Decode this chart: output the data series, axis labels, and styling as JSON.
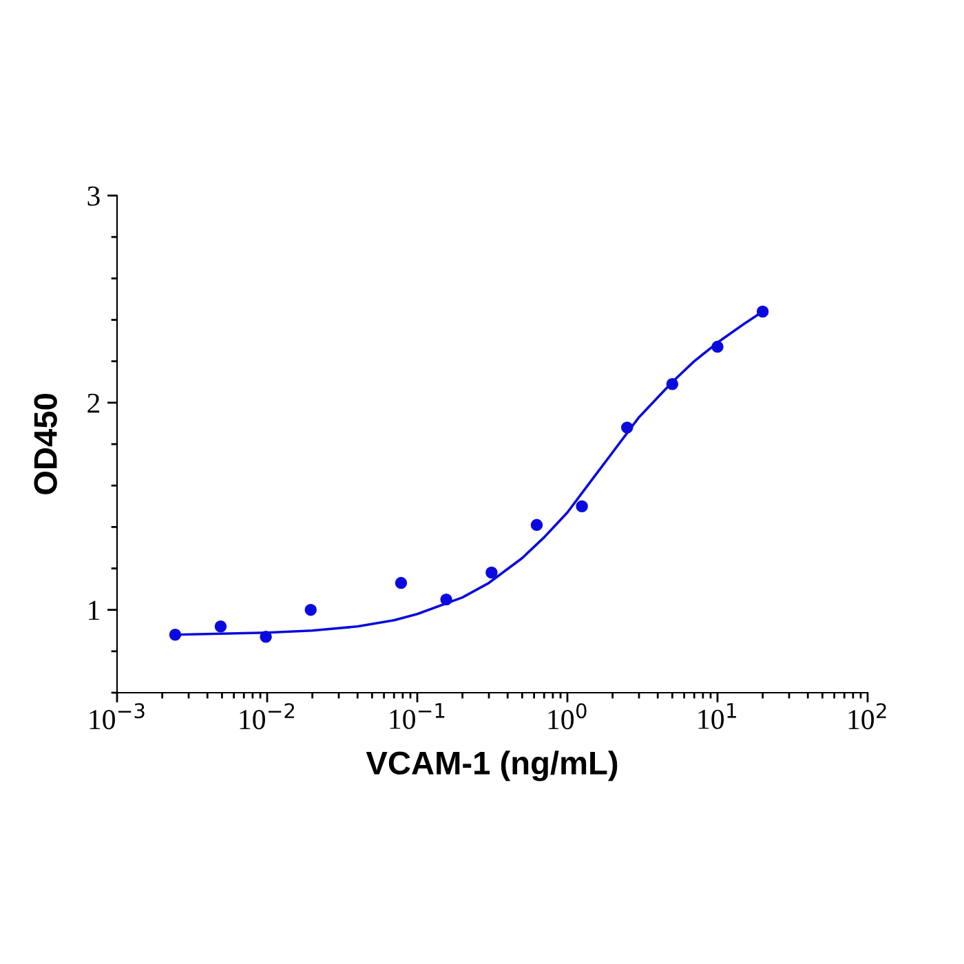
{
  "chart_data": {
    "type": "scatter",
    "xlabel": "VCAM-1 (ng/mL)",
    "ylabel": "OD450",
    "log": "x",
    "grid": false,
    "xlim": [
      0.001,
      100
    ],
    "ylim": [
      0.6,
      3
    ],
    "xticks": [
      {
        "value": 0.001,
        "label": "10$^{−3}$"
      },
      {
        "value": 0.01,
        "label": "10$^{−2}$"
      },
      {
        "value": 0.1,
        "label": "10$^{−1}$"
      },
      {
        "value": 1,
        "label": "10$^{0}$"
      },
      {
        "value": 10,
        "label": "10$^{1}$"
      },
      {
        "value": 100,
        "label": "10$^{2}$"
      }
    ],
    "yticks": [
      1,
      2,
      3
    ],
    "series": [
      {
        "color": "#0a0ae0",
        "marker": "circle",
        "x": [
          0.00244,
          0.0049,
          0.0098,
          0.0195,
          0.078,
          0.156,
          0.3125,
          0.625,
          1.25,
          2.5,
          5,
          10,
          20
        ],
        "values": [
          0.88,
          0.92,
          0.87,
          1.0,
          1.13,
          1.05,
          1.18,
          1.41,
          1.5,
          1.88,
          2.09,
          2.27,
          2.44
        ]
      },
      {
        "type": "line",
        "color": "#0a0ae0",
        "marker": "none",
        "line_style": "solid",
        "x": [
          0.00244,
          0.005,
          0.01,
          0.02,
          0.04,
          0.07,
          0.1,
          0.2,
          0.3,
          0.5,
          0.7,
          1.0,
          1.5,
          2,
          3,
          5,
          7,
          10,
          15,
          20
        ],
        "values": [
          0.88,
          0.885,
          0.89,
          0.9,
          0.92,
          0.95,
          0.98,
          1.06,
          1.13,
          1.25,
          1.35,
          1.47,
          1.64,
          1.76,
          1.93,
          2.1,
          2.2,
          2.29,
          2.38,
          2.44
        ]
      }
    ]
  }
}
